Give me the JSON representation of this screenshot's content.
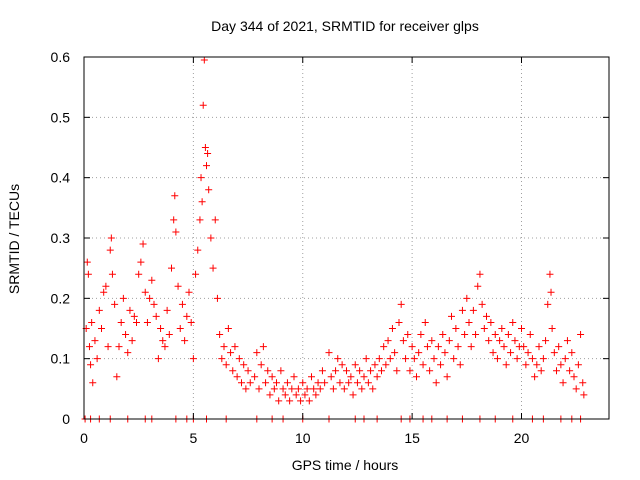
{
  "chart_data": {
    "type": "scatter",
    "title": "Day 344 of 2021, SRMTID for receiver glps",
    "xlabel": "GPS time / hours",
    "ylabel": "SRMTID / TECUs",
    "xlim": [
      0,
      24
    ],
    "ylim": [
      0,
      0.6
    ],
    "xticks": [
      0,
      5,
      10,
      15,
      20
    ],
    "xtick_labels": [
      "0",
      "5",
      "10",
      "15",
      "20"
    ],
    "yticks": [
      0,
      0.1,
      0.2,
      0.3,
      0.4,
      0.5,
      0.6
    ],
    "ytick_labels": [
      "0",
      "0.1",
      "0.2",
      "0.3",
      "0.4",
      "0.5",
      "0.6"
    ],
    "grid": true,
    "marker": "+",
    "series": [
      {
        "name": "SRMTID",
        "color": "#ff0000",
        "points": [
          [
            0.1,
            0.15
          ],
          [
            0.15,
            0.26
          ],
          [
            0.2,
            0.24
          ],
          [
            0.25,
            0.12
          ],
          [
            0.3,
            0.09
          ],
          [
            0.35,
            0.16
          ],
          [
            0.4,
            0.06
          ],
          [
            0.5,
            0.13
          ],
          [
            0.6,
            0.1
          ],
          [
            0.7,
            0.18
          ],
          [
            0.8,
            0.15
          ],
          [
            0.9,
            0.21
          ],
          [
            1.0,
            0.22
          ],
          [
            1.1,
            0.12
          ],
          [
            1.2,
            0.28
          ],
          [
            1.25,
            0.3
          ],
          [
            1.3,
            0.24
          ],
          [
            1.4,
            0.19
          ],
          [
            1.5,
            0.07
          ],
          [
            1.6,
            0.12
          ],
          [
            1.7,
            0.16
          ],
          [
            1.8,
            0.2
          ],
          [
            1.9,
            0.14
          ],
          [
            2.0,
            0.11
          ],
          [
            2.1,
            0.18
          ],
          [
            2.2,
            0.13
          ],
          [
            2.3,
            0.17
          ],
          [
            2.4,
            0.16
          ],
          [
            2.5,
            0.24
          ],
          [
            2.6,
            0.26
          ],
          [
            2.7,
            0.29
          ],
          [
            2.8,
            0.21
          ],
          [
            2.9,
            0.16
          ],
          [
            3.0,
            0.2
          ],
          [
            3.1,
            0.23
          ],
          [
            3.2,
            0.19
          ],
          [
            3.3,
            0.17
          ],
          [
            3.4,
            0.1
          ],
          [
            3.5,
            0.15
          ],
          [
            3.6,
            0.13
          ],
          [
            3.7,
            0.12
          ],
          [
            3.8,
            0.18
          ],
          [
            3.9,
            0.14
          ],
          [
            4.0,
            0.25
          ],
          [
            4.1,
            0.33
          ],
          [
            4.15,
            0.37
          ],
          [
            4.2,
            0.31
          ],
          [
            4.3,
            0.22
          ],
          [
            4.4,
            0.15
          ],
          [
            4.5,
            0.19
          ],
          [
            4.6,
            0.13
          ],
          [
            4.7,
            0.17
          ],
          [
            4.8,
            0.21
          ],
          [
            4.9,
            0.16
          ],
          [
            5.0,
            0.1
          ],
          [
            5.1,
            0.24
          ],
          [
            5.2,
            0.28
          ],
          [
            5.3,
            0.33
          ],
          [
            5.35,
            0.4
          ],
          [
            5.4,
            0.36
          ],
          [
            5.45,
            0.52
          ],
          [
            5.5,
            0.595
          ],
          [
            5.55,
            0.45
          ],
          [
            5.6,
            0.42
          ],
          [
            5.65,
            0.44
          ],
          [
            5.7,
            0.38
          ],
          [
            5.8,
            0.3
          ],
          [
            5.9,
            0.25
          ],
          [
            6.0,
            0.33
          ],
          [
            6.1,
            0.2
          ],
          [
            6.2,
            0.14
          ],
          [
            6.3,
            0.1
          ],
          [
            6.4,
            0.12
          ],
          [
            6.5,
            0.09
          ],
          [
            6.6,
            0.15
          ],
          [
            6.7,
            0.11
          ],
          [
            6.8,
            0.08
          ],
          [
            6.9,
            0.12
          ],
          [
            7.0,
            0.07
          ],
          [
            7.1,
            0.1
          ],
          [
            7.2,
            0.06
          ],
          [
            7.3,
            0.09
          ],
          [
            7.4,
            0.05
          ],
          [
            7.5,
            0.08
          ],
          [
            7.6,
            0.06
          ],
          [
            7.8,
            0.07
          ],
          [
            7.9,
            0.11
          ],
          [
            8.0,
            0.05
          ],
          [
            8.1,
            0.09
          ],
          [
            8.2,
            0.12
          ],
          [
            8.3,
            0.06
          ],
          [
            8.4,
            0.08
          ],
          [
            8.5,
            0.04
          ],
          [
            8.6,
            0.07
          ],
          [
            8.7,
            0.05
          ],
          [
            8.8,
            0.06
          ],
          [
            8.9,
            0.03
          ],
          [
            9.0,
            0.08
          ],
          [
            9.1,
            0.05
          ],
          [
            9.2,
            0.04
          ],
          [
            9.3,
            0.06
          ],
          [
            9.4,
            0.03
          ],
          [
            9.5,
            0.05
          ],
          [
            9.6,
            0.07
          ],
          [
            9.7,
            0.04
          ],
          [
            9.8,
            0.05
          ],
          [
            9.9,
            0.03
          ],
          [
            10.0,
            0.06
          ],
          [
            10.1,
            0.04
          ],
          [
            10.2,
            0.05
          ],
          [
            10.3,
            0.03
          ],
          [
            10.4,
            0.07
          ],
          [
            10.5,
            0.05
          ],
          [
            10.6,
            0.04
          ],
          [
            10.7,
            0.06
          ],
          [
            10.8,
            0.05
          ],
          [
            10.9,
            0.08
          ],
          [
            11.0,
            0.06
          ],
          [
            11.2,
            0.11
          ],
          [
            11.3,
            0.07
          ],
          [
            11.4,
            0.05
          ],
          [
            11.5,
            0.08
          ],
          [
            11.6,
            0.1
          ],
          [
            11.7,
            0.06
          ],
          [
            11.8,
            0.09
          ],
          [
            11.9,
            0.05
          ],
          [
            12.0,
            0.08
          ],
          [
            12.1,
            0.06
          ],
          [
            12.2,
            0.07
          ],
          [
            12.3,
            0.04
          ],
          [
            12.4,
            0.09
          ],
          [
            12.5,
            0.06
          ],
          [
            12.6,
            0.08
          ],
          [
            12.7,
            0.05
          ],
          [
            12.8,
            0.07
          ],
          [
            12.9,
            0.1
          ],
          [
            13.0,
            0.06
          ],
          [
            13.1,
            0.08
          ],
          [
            13.2,
            0.05
          ],
          [
            13.3,
            0.09
          ],
          [
            13.4,
            0.07
          ],
          [
            13.5,
            0.1
          ],
          [
            13.6,
            0.08
          ],
          [
            13.7,
            0.12
          ],
          [
            13.8,
            0.09
          ],
          [
            13.9,
            0.13
          ],
          [
            14.0,
            0.1
          ],
          [
            14.1,
            0.15
          ],
          [
            14.2,
            0.11
          ],
          [
            14.3,
            0.08
          ],
          [
            14.4,
            0.16
          ],
          [
            14.5,
            0.19
          ],
          [
            14.6,
            0.13
          ],
          [
            14.7,
            0.1
          ],
          [
            14.8,
            0.14
          ],
          [
            14.9,
            0.08
          ],
          [
            15.0,
            0.12
          ],
          [
            15.1,
            0.1
          ],
          [
            15.2,
            0.07
          ],
          [
            15.3,
            0.11
          ],
          [
            15.4,
            0.14
          ],
          [
            15.5,
            0.09
          ],
          [
            15.6,
            0.16
          ],
          [
            15.7,
            0.12
          ],
          [
            15.8,
            0.08
          ],
          [
            15.9,
            0.13
          ],
          [
            16.0,
            0.1
          ],
          [
            16.1,
            0.06
          ],
          [
            16.2,
            0.12
          ],
          [
            16.3,
            0.09
          ],
          [
            16.4,
            0.14
          ],
          [
            16.5,
            0.11
          ],
          [
            16.6,
            0.07
          ],
          [
            16.7,
            0.13
          ],
          [
            16.8,
            0.17
          ],
          [
            16.9,
            0.1
          ],
          [
            17.0,
            0.15
          ],
          [
            17.1,
            0.12
          ],
          [
            17.2,
            0.09
          ],
          [
            17.3,
            0.18
          ],
          [
            17.4,
            0.14
          ],
          [
            17.5,
            0.2
          ],
          [
            17.6,
            0.16
          ],
          [
            17.7,
            0.12
          ],
          [
            17.8,
            0.18
          ],
          [
            17.9,
            0.14
          ],
          [
            18.0,
            0.22
          ],
          [
            18.1,
            0.24
          ],
          [
            18.2,
            0.19
          ],
          [
            18.3,
            0.15
          ],
          [
            18.4,
            0.17
          ],
          [
            18.5,
            0.13
          ],
          [
            18.6,
            0.16
          ],
          [
            18.7,
            0.11
          ],
          [
            18.8,
            0.14
          ],
          [
            18.9,
            0.1
          ],
          [
            19.0,
            0.13
          ],
          [
            19.1,
            0.15
          ],
          [
            19.2,
            0.12
          ],
          [
            19.3,
            0.09
          ],
          [
            19.4,
            0.14
          ],
          [
            19.5,
            0.11
          ],
          [
            19.6,
            0.16
          ],
          [
            19.7,
            0.13
          ],
          [
            19.8,
            0.1
          ],
          [
            19.9,
            0.12
          ],
          [
            20.0,
            0.15
          ],
          [
            20.1,
            0.12
          ],
          [
            20.2,
            0.09
          ],
          [
            20.3,
            0.11
          ],
          [
            20.4,
            0.14
          ],
          [
            20.5,
            0.1
          ],
          [
            20.6,
            0.07
          ],
          [
            20.7,
            0.09
          ],
          [
            20.8,
            0.12
          ],
          [
            20.9,
            0.08
          ],
          [
            21.0,
            0.1
          ],
          [
            21.1,
            0.13
          ],
          [
            21.2,
            0.19
          ],
          [
            21.3,
            0.24
          ],
          [
            21.35,
            0.21
          ],
          [
            21.4,
            0.15
          ],
          [
            21.5,
            0.11
          ],
          [
            21.6,
            0.08
          ],
          [
            21.7,
            0.12
          ],
          [
            21.8,
            0.09
          ],
          [
            21.9,
            0.06
          ],
          [
            22.0,
            0.1
          ],
          [
            22.1,
            0.13
          ],
          [
            22.2,
            0.08
          ],
          [
            22.3,
            0.11
          ],
          [
            22.4,
            0.07
          ],
          [
            22.5,
            0.05
          ],
          [
            22.6,
            0.09
          ],
          [
            22.7,
            0.14
          ],
          [
            22.8,
            0.06
          ],
          [
            22.85,
            0.04
          ],
          [
            0.05,
            0.0
          ],
          [
            0.3,
            0.0
          ],
          [
            0.7,
            0.0
          ],
          [
            1.2,
            0.0
          ],
          [
            2.0,
            0.0
          ],
          [
            2.8,
            0.0
          ],
          [
            3.1,
            0.0
          ],
          [
            4.2,
            0.0
          ],
          [
            4.7,
            0.0
          ],
          [
            5.0,
            0.0
          ],
          [
            5.6,
            0.0
          ],
          [
            6.5,
            0.0
          ],
          [
            7.9,
            0.0
          ],
          [
            8.6,
            0.0
          ],
          [
            9.1,
            0.0
          ],
          [
            10.0,
            0.0
          ],
          [
            11.2,
            0.0
          ],
          [
            12.4,
            0.0
          ],
          [
            12.8,
            0.0
          ],
          [
            13.4,
            0.0
          ],
          [
            14.5,
            0.0
          ],
          [
            14.9,
            0.0
          ],
          [
            15.5,
            0.0
          ],
          [
            15.9,
            0.0
          ],
          [
            16.6,
            0.0
          ],
          [
            17.3,
            0.0
          ],
          [
            18.1,
            0.0
          ],
          [
            18.8,
            0.0
          ],
          [
            19.6,
            0.0
          ],
          [
            20.5,
            0.0
          ],
          [
            21.0,
            0.0
          ],
          [
            21.8,
            0.0
          ],
          [
            22.3,
            0.0
          ],
          [
            22.7,
            0.0
          ]
        ]
      }
    ]
  }
}
